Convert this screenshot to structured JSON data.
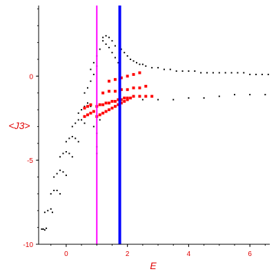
{
  "chart_data": {
    "type": "scatter",
    "xlabel": "E",
    "ylabel": "<J3>",
    "xlim": [
      -0.9,
      6.65
    ],
    "ylim": [
      -10,
      4.2
    ],
    "x_ticks": [
      0,
      2,
      4,
      6
    ],
    "y_ticks": [
      0,
      -5,
      -10
    ],
    "x_tick_labels": [
      "0",
      "2",
      "4",
      "6"
    ],
    "y_tick_labels": [
      "0",
      "-5",
      "-10"
    ],
    "grid": false,
    "vertical_lines": [
      {
        "x": 1.0,
        "color": "#ff00ff"
      },
      {
        "x": 1.75,
        "color": "#0000ff"
      }
    ],
    "series": [
      {
        "color": "#000000",
        "marker": "dot",
        "description_points": [
          [
            -0.8,
            -9.1
          ],
          [
            -0.75,
            -9.1
          ],
          [
            -0.7,
            -9.15
          ],
          [
            -0.65,
            -9.05
          ],
          [
            -0.7,
            -8.1
          ],
          [
            -0.6,
            -8.0
          ],
          [
            -0.5,
            -7.9
          ],
          [
            -0.45,
            -8.1
          ],
          [
            -0.5,
            -7.0
          ],
          [
            -0.4,
            -6.8
          ],
          [
            -0.3,
            -6.8
          ],
          [
            -0.2,
            -7.0
          ],
          [
            -0.4,
            -6.0
          ],
          [
            -0.3,
            -5.8
          ],
          [
            -0.2,
            -5.6
          ],
          [
            -0.1,
            -5.7
          ],
          [
            0.0,
            -5.9
          ],
          [
            -0.2,
            -4.8
          ],
          [
            -0.1,
            -4.6
          ],
          [
            0.0,
            -4.5
          ],
          [
            0.1,
            -4.6
          ],
          [
            0.2,
            -4.8
          ],
          [
            0.0,
            -3.9
          ],
          [
            0.1,
            -3.7
          ],
          [
            0.2,
            -3.6
          ],
          [
            0.3,
            -3.7
          ],
          [
            0.4,
            -3.9
          ],
          [
            0.2,
            -3.0
          ],
          [
            0.3,
            -2.8
          ],
          [
            0.4,
            -2.6
          ],
          [
            0.5,
            -2.6
          ],
          [
            0.6,
            -2.8
          ],
          [
            0.4,
            -2.2
          ],
          [
            0.5,
            -2.0
          ],
          [
            0.6,
            -1.8
          ],
          [
            0.7,
            -1.6
          ],
          [
            0.8,
            -1.8
          ],
          [
            0.6,
            -1.0
          ],
          [
            0.7,
            -0.7
          ],
          [
            0.8,
            -0.3
          ],
          [
            0.9,
            0.1
          ],
          [
            1.0,
            0.6
          ],
          [
            0.8,
            0.4
          ],
          [
            0.9,
            0.8
          ],
          [
            1.0,
            1.2
          ],
          [
            1.1,
            1.6
          ],
          [
            1.2,
            2.1
          ],
          [
            1.2,
            2.3
          ],
          [
            1.3,
            2.4
          ],
          [
            1.4,
            2.3
          ],
          [
            1.5,
            2.1
          ],
          [
            1.6,
            1.8
          ],
          [
            1.3,
            1.9
          ],
          [
            1.4,
            1.7
          ],
          [
            1.5,
            1.4
          ],
          [
            1.6,
            1.1
          ],
          [
            1.7,
            0.8
          ],
          [
            1.8,
            1.6
          ],
          [
            1.9,
            1.4
          ],
          [
            2.0,
            1.2
          ],
          [
            2.1,
            1.0
          ],
          [
            2.2,
            0.9
          ],
          [
            2.3,
            0.8
          ],
          [
            2.4,
            0.7
          ],
          [
            2.5,
            0.7
          ],
          [
            2.6,
            0.6
          ],
          [
            2.8,
            0.5
          ],
          [
            3.0,
            0.5
          ],
          [
            3.2,
            0.4
          ],
          [
            3.4,
            0.4
          ],
          [
            3.6,
            0.3
          ],
          [
            3.8,
            0.3
          ],
          [
            4.0,
            0.3
          ],
          [
            4.2,
            0.3
          ],
          [
            4.4,
            0.2
          ],
          [
            4.6,
            0.2
          ],
          [
            4.8,
            0.2
          ],
          [
            5.0,
            0.2
          ],
          [
            5.2,
            0.2
          ],
          [
            5.4,
            0.2
          ],
          [
            5.6,
            0.2
          ],
          [
            5.8,
            0.2
          ],
          [
            6.0,
            0.1
          ],
          [
            6.2,
            0.1
          ],
          [
            6.4,
            0.1
          ],
          [
            6.6,
            0.1
          ],
          [
            2.5,
            -1.4
          ],
          [
            3.0,
            -1.4
          ],
          [
            3.5,
            -1.4
          ],
          [
            4.0,
            -1.3
          ],
          [
            4.5,
            -1.3
          ],
          [
            5.0,
            -1.2
          ],
          [
            5.5,
            -1.1
          ],
          [
            6.0,
            -1.1
          ],
          [
            6.5,
            -1.1
          ],
          [
            1.0,
            -3.4
          ],
          [
            1.0,
            -4.2
          ],
          [
            1.0,
            -4.6
          ],
          [
            0.9,
            -3.0
          ],
          [
            1.1,
            -2.6
          ]
        ]
      },
      {
        "color": "#ff0000",
        "marker": "square",
        "description_points": [
          [
            1.0,
            -2.4
          ],
          [
            1.1,
            -2.3
          ],
          [
            1.2,
            -2.2
          ],
          [
            1.3,
            -2.1
          ],
          [
            1.4,
            -2.0
          ],
          [
            1.5,
            -1.9
          ],
          [
            1.6,
            -1.8
          ],
          [
            1.7,
            -1.7
          ],
          [
            1.8,
            -1.6
          ],
          [
            1.9,
            -1.5
          ],
          [
            2.0,
            -1.4
          ],
          [
            2.1,
            -1.3
          ],
          [
            1.0,
            -1.8
          ],
          [
            1.1,
            -1.7
          ],
          [
            1.2,
            -1.7
          ],
          [
            1.3,
            -1.6
          ],
          [
            1.4,
            -1.6
          ],
          [
            1.5,
            -1.5
          ],
          [
            1.6,
            -1.5
          ],
          [
            1.7,
            -1.4
          ],
          [
            1.8,
            -1.4
          ],
          [
            1.9,
            -1.3
          ],
          [
            2.0,
            -1.3
          ],
          [
            2.2,
            -1.2
          ],
          [
            2.4,
            -1.2
          ],
          [
            2.6,
            -1.2
          ],
          [
            2.8,
            -1.2
          ],
          [
            0.6,
            -2.4
          ],
          [
            0.7,
            -2.3
          ],
          [
            0.8,
            -2.2
          ],
          [
            0.9,
            -2.1
          ],
          [
            0.6,
            -1.9
          ],
          [
            0.7,
            -1.8
          ],
          [
            0.8,
            -1.7
          ],
          [
            1.2,
            -1.0
          ],
          [
            1.4,
            -0.9
          ],
          [
            1.6,
            -0.9
          ],
          [
            1.8,
            -0.8
          ],
          [
            2.0,
            -0.8
          ],
          [
            2.2,
            -0.7
          ],
          [
            2.4,
            -0.7
          ],
          [
            2.6,
            -0.6
          ],
          [
            1.4,
            -0.3
          ],
          [
            1.6,
            -0.2
          ],
          [
            1.8,
            -0.1
          ],
          [
            2.0,
            0.0
          ],
          [
            2.2,
            0.1
          ],
          [
            2.4,
            0.2
          ]
        ]
      }
    ]
  }
}
